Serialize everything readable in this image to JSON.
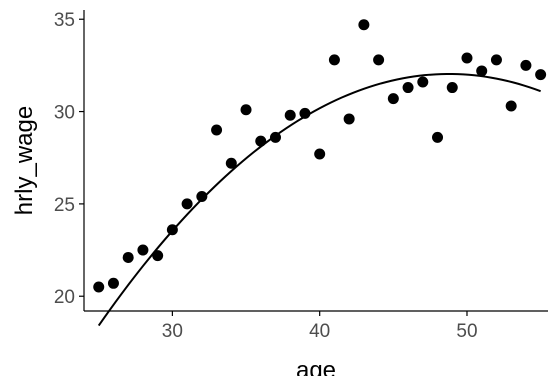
{
  "chart_data": {
    "type": "scatter",
    "xlabel": "age",
    "ylabel": "hrly_wage",
    "xlim": [
      24,
      55.5
    ],
    "ylim": [
      19.2,
      35.5
    ],
    "x_ticks": [
      30,
      40,
      50
    ],
    "y_ticks": [
      20,
      25,
      30,
      35
    ],
    "x_tick_labels": [
      "30",
      "40",
      "50"
    ],
    "y_tick_labels": [
      "20",
      "25",
      "30",
      "35"
    ],
    "grid": false,
    "points": [
      {
        "x": 25,
        "y": 20.5
      },
      {
        "x": 26,
        "y": 20.7
      },
      {
        "x": 27,
        "y": 22.1
      },
      {
        "x": 28,
        "y": 22.5
      },
      {
        "x": 29,
        "y": 22.2
      },
      {
        "x": 30,
        "y": 23.6
      },
      {
        "x": 31,
        "y": 25.0
      },
      {
        "x": 32,
        "y": 25.4
      },
      {
        "x": 33,
        "y": 29.0
      },
      {
        "x": 34,
        "y": 27.2
      },
      {
        "x": 35,
        "y": 30.1
      },
      {
        "x": 36,
        "y": 28.4
      },
      {
        "x": 37,
        "y": 28.6
      },
      {
        "x": 38,
        "y": 29.8
      },
      {
        "x": 39,
        "y": 29.9
      },
      {
        "x": 40,
        "y": 27.7
      },
      {
        "x": 41,
        "y": 32.8
      },
      {
        "x": 42,
        "y": 29.6
      },
      {
        "x": 43,
        "y": 34.7
      },
      {
        "x": 44,
        "y": 32.8
      },
      {
        "x": 45,
        "y": 30.7
      },
      {
        "x": 46,
        "y": 31.3
      },
      {
        "x": 47,
        "y": 31.6
      },
      {
        "x": 48,
        "y": 28.6
      },
      {
        "x": 49,
        "y": 31.3
      },
      {
        "x": 50,
        "y": 32.9
      },
      {
        "x": 51,
        "y": 32.2
      },
      {
        "x": 52,
        "y": 32.8
      },
      {
        "x": 53,
        "y": 30.3
      },
      {
        "x": 54,
        "y": 32.5
      },
      {
        "x": 55,
        "y": 32.0
      }
    ],
    "fit_line": {
      "type": "quadratic",
      "coefficients": [
        -25.3,
        2.351,
        -0.0241
      ],
      "x_range": [
        25,
        55
      ]
    },
    "colors": {
      "points": "#000000",
      "fit_line": "#000000",
      "axis": "#000000",
      "tick_labels": "#4d4d4d",
      "background": "#ffffff"
    }
  }
}
